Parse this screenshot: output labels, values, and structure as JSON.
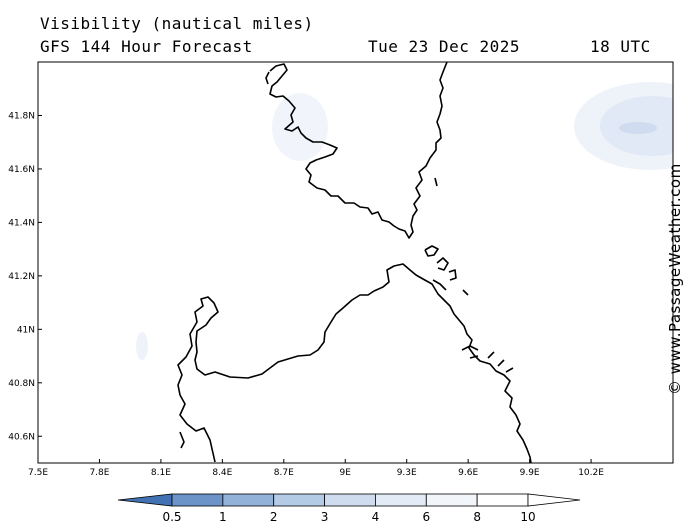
{
  "header": {
    "title": "Visibility (nautical miles)",
    "model": "GFS 144 Hour Forecast",
    "date": "Tue 23 Dec 2025",
    "time": "18 UTC"
  },
  "map": {
    "lon_range": [
      7.5,
      10.6
    ],
    "lat_range": [
      40.5,
      42.0
    ],
    "lon_ticks": [
      {
        "value": 7.5,
        "label": "7.5E"
      },
      {
        "value": 7.8,
        "label": "7.8E"
      },
      {
        "value": 8.1,
        "label": "8.1E"
      },
      {
        "value": 8.4,
        "label": "8.4E"
      },
      {
        "value": 8.7,
        "label": "8.7E"
      },
      {
        "value": 9.0,
        "label": "9E"
      },
      {
        "value": 9.3,
        "label": "9.3E"
      },
      {
        "value": 9.6,
        "label": "9.6E"
      },
      {
        "value": 9.9,
        "label": "9.9E"
      },
      {
        "value": 10.2,
        "label": "10.2E"
      }
    ],
    "lat_ticks": [
      {
        "value": 41.8,
        "label": "41.8N"
      },
      {
        "value": 41.6,
        "label": "41.6N"
      },
      {
        "value": 41.4,
        "label": "41.4N"
      },
      {
        "value": 41.2,
        "label": "41.2N"
      },
      {
        "value": 41.0,
        "label": "41N"
      },
      {
        "value": 40.8,
        "label": "40.8N"
      },
      {
        "value": 40.6,
        "label": "40.6N"
      }
    ],
    "coastline_color": "#000000",
    "reduced_visibility_areas": [
      {
        "name": "corsica-southwest",
        "visibility_nm": "8-10"
      },
      {
        "name": "east-offshore",
        "visibility_nm": "6-10"
      },
      {
        "name": "sardinia-west",
        "visibility_nm": "8-10"
      }
    ]
  },
  "colorbar": {
    "labels": [
      "0.5",
      "1",
      "2",
      "3",
      "4",
      "6",
      "8",
      "10"
    ],
    "colors": [
      "#4372b4",
      "#6c94c8",
      "#93b2d8",
      "#b4cbe6",
      "#cfdcef",
      "#e3ebf6",
      "#f2f6fb",
      "#ffffff"
    ]
  },
  "credit": "© www.PassageWeather.com"
}
